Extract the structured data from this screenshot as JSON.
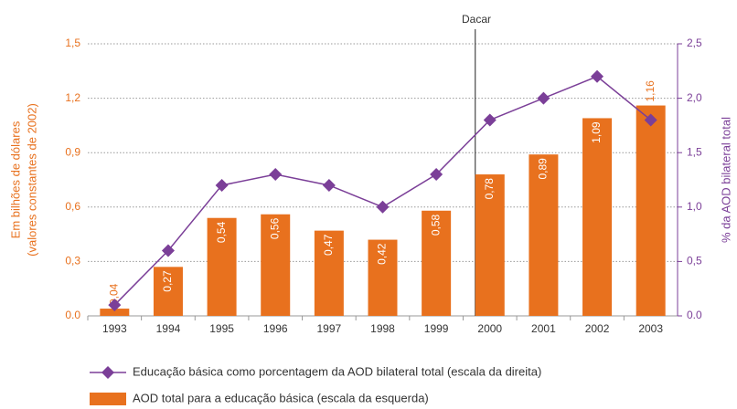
{
  "chart_data": {
    "type": "bar",
    "annotation": "Dacar",
    "ylabel": [
      "Em bilhões de dólares",
      "(valores constantes de 2002)"
    ],
    "y2label": "% da AOD bilateral total",
    "categories": [
      "1993",
      "1994",
      "1995",
      "1996",
      "1997",
      "1998",
      "1999",
      "2000",
      "2001",
      "2002",
      "2003"
    ],
    "series": [
      {
        "name": "Educação básica como porcentagem da AOD bilateral total (escala da direita)",
        "type": "line",
        "axis": "y2",
        "color": "#7b3f98",
        "values": [
          0.1,
          0.6,
          1.2,
          1.3,
          1.2,
          1.0,
          1.3,
          1.8,
          2.0,
          2.2,
          1.8
        ]
      },
      {
        "name": "AOD total para a educação básica (escala da esquerda)",
        "type": "bar",
        "color": "#e8711e",
        "values": [
          0.04,
          0.27,
          0.54,
          0.56,
          0.47,
          0.42,
          0.58,
          0.78,
          0.89,
          1.09,
          1.16
        ],
        "value_labels": [
          "0,04",
          "0,27",
          "0,54",
          "0,56",
          "0,47",
          "0,42",
          "0,58",
          "0,78",
          "0,89",
          "1,09",
          "1,16"
        ]
      }
    ],
    "ylim": [
      0,
      1.5
    ],
    "yticks": [
      {
        "value": 0,
        "label": "0.0"
      },
      {
        "value": 0.3,
        "label": "0,3"
      },
      {
        "value": 0.6,
        "label": "0,6"
      },
      {
        "value": 0.9,
        "label": "0,9"
      },
      {
        "value": 1.2,
        "label": "1,2"
      },
      {
        "value": 1.5,
        "label": "1,5"
      }
    ],
    "y2lim": [
      0,
      2.5
    ],
    "y2ticks": [
      {
        "value": 0,
        "label": "0.0"
      },
      {
        "value": 0.5,
        "label": "0,5"
      },
      {
        "value": 1.0,
        "label": "1,0"
      },
      {
        "value": 1.5,
        "label": "1,5"
      },
      {
        "value": 2.0,
        "label": "2,0"
      },
      {
        "value": 2.5,
        "label": "2,5"
      }
    ],
    "grid": true
  }
}
